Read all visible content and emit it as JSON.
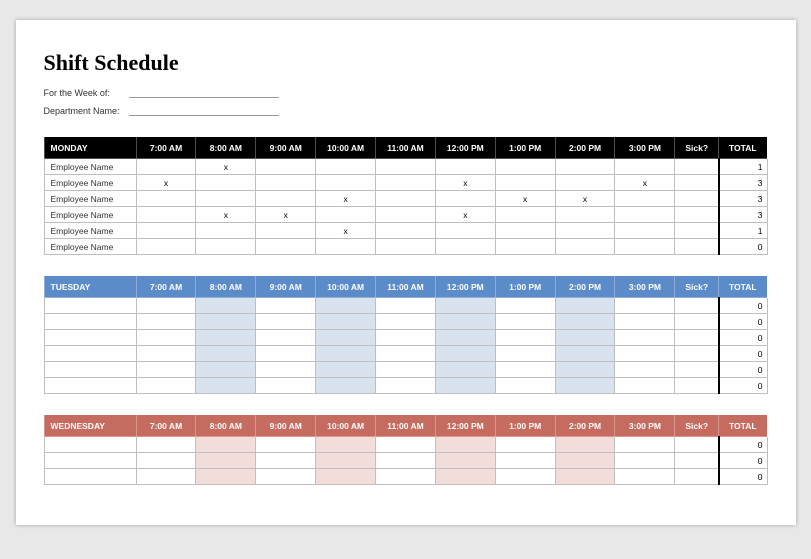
{
  "title": "Shift Schedule",
  "meta": {
    "weekLabel": "For the Week of:",
    "deptLabel": "Department Name:"
  },
  "timeHeaders": [
    "7:00 AM",
    "8:00 AM",
    "9:00 AM",
    "10:00 AM",
    "11:00 AM",
    "12:00 PM",
    "1:00 PM",
    "2:00 PM",
    "3:00 PM"
  ],
  "sickHeader": "Sick?",
  "totalHeader": "TOTAL",
  "days": [
    {
      "name": "MONDAY",
      "headerClass": "hdr-monday",
      "shadeClass": "",
      "rows": [
        {
          "name": "Employee Name",
          "marks": [
            "",
            "x",
            "",
            "",
            "",
            "",
            "",
            "",
            ""
          ],
          "total": "1"
        },
        {
          "name": "Employee Name",
          "marks": [
            "x",
            "",
            "",
            "",
            "",
            "x",
            "",
            "",
            "x"
          ],
          "total": "3"
        },
        {
          "name": "Employee Name",
          "marks": [
            "",
            "",
            "",
            "x",
            "",
            "",
            "x",
            "x",
            ""
          ],
          "total": "3"
        },
        {
          "name": "Employee Name",
          "marks": [
            "",
            "x",
            "x",
            "",
            "",
            "x",
            "",
            "",
            ""
          ],
          "total": "3"
        },
        {
          "name": "Employee Name",
          "marks": [
            "",
            "",
            "",
            "x",
            "",
            "",
            "",
            "",
            ""
          ],
          "total": "1"
        },
        {
          "name": "Employee Name",
          "marks": [
            "",
            "",
            "",
            "",
            "",
            "",
            "",
            "",
            ""
          ],
          "total": "0"
        }
      ]
    },
    {
      "name": "TUESDAY",
      "headerClass": "hdr-tuesday",
      "shadeClass": "shade-blue",
      "rows": [
        {
          "name": "",
          "marks": [
            "",
            "",
            "",
            "",
            "",
            "",
            "",
            "",
            ""
          ],
          "total": "0"
        },
        {
          "name": "",
          "marks": [
            "",
            "",
            "",
            "",
            "",
            "",
            "",
            "",
            ""
          ],
          "total": "0"
        },
        {
          "name": "",
          "marks": [
            "",
            "",
            "",
            "",
            "",
            "",
            "",
            "",
            ""
          ],
          "total": "0"
        },
        {
          "name": "",
          "marks": [
            "",
            "",
            "",
            "",
            "",
            "",
            "",
            "",
            ""
          ],
          "total": "0"
        },
        {
          "name": "",
          "marks": [
            "",
            "",
            "",
            "",
            "",
            "",
            "",
            "",
            ""
          ],
          "total": "0"
        },
        {
          "name": "",
          "marks": [
            "",
            "",
            "",
            "",
            "",
            "",
            "",
            "",
            ""
          ],
          "total": "0"
        }
      ]
    },
    {
      "name": "WEDNESDAY",
      "headerClass": "hdr-wednesday",
      "shadeClass": "shade-red",
      "rows": [
        {
          "name": "",
          "marks": [
            "",
            "",
            "",
            "",
            "",
            "",
            "",
            "",
            ""
          ],
          "total": "0"
        },
        {
          "name": "",
          "marks": [
            "",
            "",
            "",
            "",
            "",
            "",
            "",
            "",
            ""
          ],
          "total": "0"
        },
        {
          "name": "",
          "marks": [
            "",
            "",
            "",
            "",
            "",
            "",
            "",
            "",
            ""
          ],
          "total": "0"
        }
      ]
    }
  ]
}
